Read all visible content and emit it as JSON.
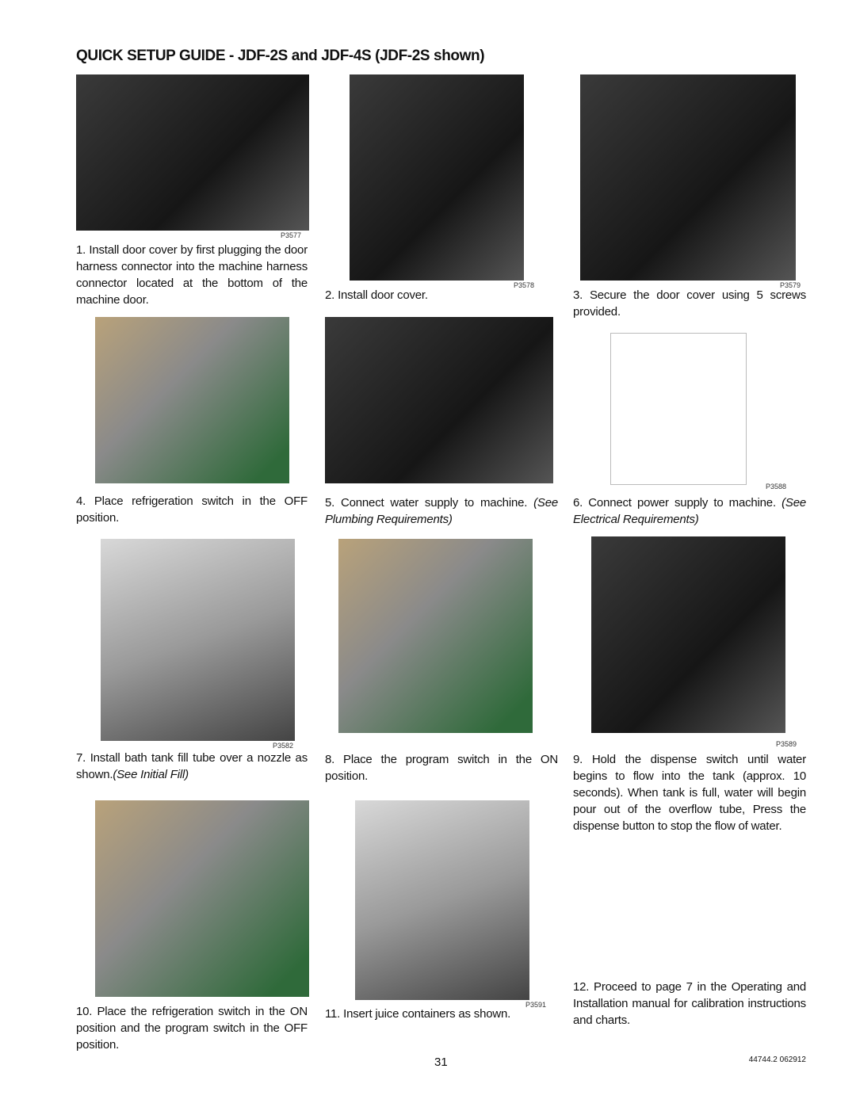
{
  "header": {
    "title": "QUICK SETUP GUIDE - JDF-2S and JDF-4S (JDF-2S shown)"
  },
  "steps": [
    {
      "text": "1. Install door cover by first plugging the door harness connector into the machine harness connector located at the bottom of the machine door."
    },
    {
      "text": "2. Install door cover."
    },
    {
      "text": "3. Secure the door cover using 5 screws provided."
    },
    {
      "text": "4. Place refrigeration switch in the OFF position."
    },
    {
      "text": "5. Connect water supply to machine.",
      "italic": "(See Plumbing Requirements)"
    },
    {
      "text": "6. Connect power supply to machine.",
      "italic": "(See Electrical Requirements)"
    },
    {
      "text": "7. Install bath tank fill tube over a nozzle as shown.",
      "italic": "(See Initial Fill)"
    },
    {
      "text": "8. Place the program switch in the ON position."
    },
    {
      "text": "9. Hold the dispense switch until water begins to flow into the tank (approx. 10 seconds). When tank is full, water will begin pour out of the overflow tube, Press the dispense button to stop the flow of water."
    },
    {
      "text": "10. Place the refrigeration switch in the ON position and the program switch in the OFF position."
    },
    {
      "text": "11. Insert juice containers as shown."
    },
    {
      "text": "12. Proceed to page 7 in the Operating and Installation manual for calibration instructions and charts."
    }
  ],
  "photo_labels": [
    "P3577",
    "P3578",
    "P3579",
    "P3588",
    "P3582",
    "P3589",
    "P3591"
  ],
  "footer": {
    "page": "31",
    "doc_id": "44744.2 062912"
  }
}
